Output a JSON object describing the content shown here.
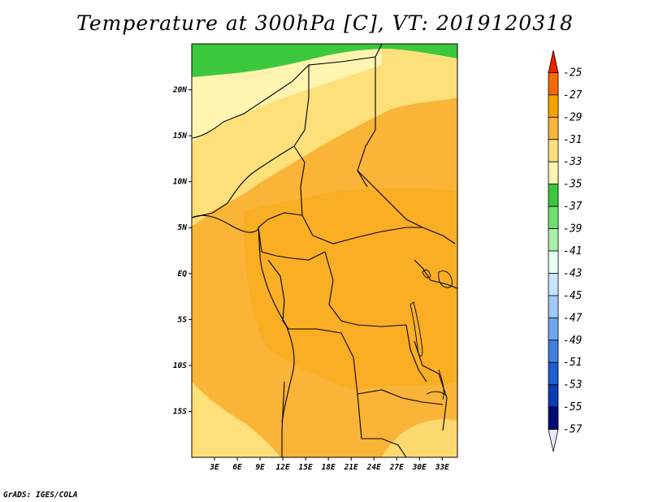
{
  "title": "Temperature at 300hPa [C], VT: 2019120318",
  "credit": "GrADS: IGES/COLA",
  "map": {
    "projection": "latlon",
    "lon_range": [
      0,
      35
    ],
    "lat_range": [
      -20,
      25
    ],
    "lat_ticks": [
      {
        "value": 20,
        "label": "20N"
      },
      {
        "value": 15,
        "label": "15N"
      },
      {
        "value": 10,
        "label": "10N"
      },
      {
        "value": 5,
        "label": "5N"
      },
      {
        "value": 0,
        "label": "EQ"
      },
      {
        "value": -5,
        "label": "5S"
      },
      {
        "value": -10,
        "label": "10S"
      },
      {
        "value": -15,
        "label": "15S"
      }
    ],
    "lon_ticks": [
      {
        "value": 3,
        "label": "3E"
      },
      {
        "value": 6,
        "label": "6E"
      },
      {
        "value": 9,
        "label": "9E"
      },
      {
        "value": 12,
        "label": "12E"
      },
      {
        "value": 15,
        "label": "15E"
      },
      {
        "value": 18,
        "label": "18E"
      },
      {
        "value": 21,
        "label": "21E"
      },
      {
        "value": 24,
        "label": "24E"
      },
      {
        "value": 27,
        "label": "27E"
      },
      {
        "value": 30,
        "label": "30E"
      },
      {
        "value": 33,
        "label": "33E"
      }
    ]
  },
  "colorbar": {
    "levels": [
      "-25",
      "-27",
      "-29",
      "-31",
      "-33",
      "-35",
      "-37",
      "-39",
      "-41",
      "-43",
      "-45",
      "-47",
      "-49",
      "-51",
      "-53",
      "-55",
      "-57"
    ],
    "colors": [
      "#ee2200",
      "#f46a00",
      "#f7a200",
      "#fab437",
      "#fde07a",
      "#fff5b0",
      "#3cc83c",
      "#6ee06e",
      "#a8f0a8",
      "#e6fff0",
      "#c8e4ff",
      "#a0c8f8",
      "#6ea6f0",
      "#4080e0",
      "#1e5ed2",
      "#0a3cb4",
      "#000a78",
      "#e8e8ff"
    ]
  },
  "field": {
    "units": "C",
    "regions": [
      {
        "name": "band-warm-south",
        "value": -29,
        "color": "#fab437"
      },
      {
        "name": "band-core",
        "value": -30,
        "color": "#f7a200"
      },
      {
        "name": "band-northwest",
        "value": -31,
        "color": "#fde07a"
      },
      {
        "name": "band-north",
        "value": -33,
        "color": "#fff5b0"
      },
      {
        "name": "band-far-north",
        "value": -36,
        "color": "#3cc83c"
      }
    ]
  }
}
